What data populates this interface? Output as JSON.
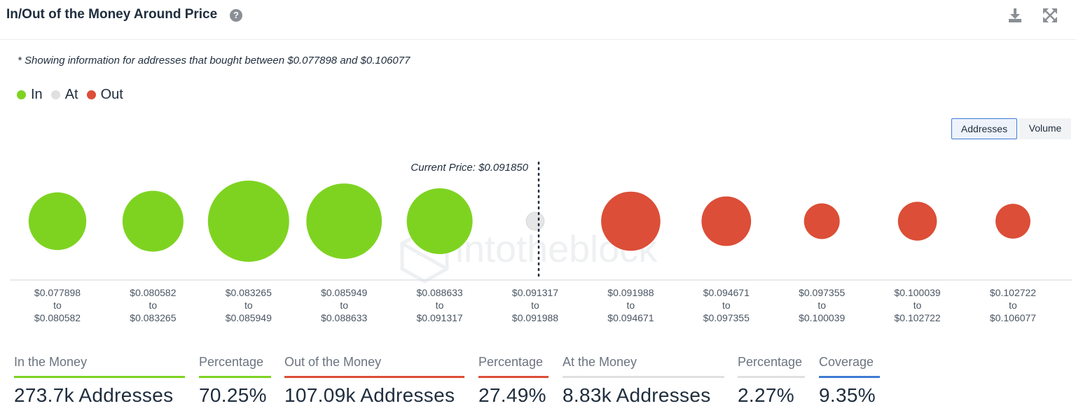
{
  "header": {
    "title": "In/Out of the Money Around Price",
    "help_icon": "question-circle-icon",
    "download_icon": "download-icon",
    "expand_icon": "expand-icon"
  },
  "note": "* Showing information for addresses that bought between $0.077898 and $0.106077",
  "legend": [
    {
      "label": "In",
      "color": "#7ed321"
    },
    {
      "label": "At",
      "color": "#e0e0e0"
    },
    {
      "label": "Out",
      "color": "#dc4e37"
    }
  ],
  "toggle": {
    "addresses": "Addresses",
    "volume": "Volume"
  },
  "watermark": "intotheblock",
  "chart_data": {
    "type": "bubble",
    "current_price_label": "Current Price: $0.091850",
    "categories": [
      {
        "from": "$0.077898",
        "to": "$0.080582",
        "status": "in",
        "relative_size": 0.71
      },
      {
        "from": "$0.080582",
        "to": "$0.083265",
        "status": "in",
        "relative_size": 0.75
      },
      {
        "from": "$0.083265",
        "to": "$0.085949",
        "status": "in",
        "relative_size": 1.0
      },
      {
        "from": "$0.085949",
        "to": "$0.088633",
        "status": "in",
        "relative_size": 0.93
      },
      {
        "from": "$0.088633",
        "to": "$0.091317",
        "status": "in",
        "relative_size": 0.81
      },
      {
        "from": "$0.091317",
        "to": "$0.091988",
        "status": "at",
        "relative_size": 0.22
      },
      {
        "from": "$0.091988",
        "to": "$0.094671",
        "status": "out",
        "relative_size": 0.73
      },
      {
        "from": "$0.094671",
        "to": "$0.097355",
        "status": "out",
        "relative_size": 0.61
      },
      {
        "from": "$0.097355",
        "to": "$0.100039",
        "status": "out",
        "relative_size": 0.44
      },
      {
        "from": "$0.100039",
        "to": "$0.102722",
        "status": "out",
        "relative_size": 0.48
      },
      {
        "from": "$0.102722",
        "to": "$0.106077",
        "status": "out",
        "relative_size": 0.43
      }
    ],
    "to_word": "to",
    "colors": {
      "in": "#7ed321",
      "at": "#e6e6e6",
      "out": "#dc4e37"
    }
  },
  "stats": [
    {
      "label": "In the Money",
      "value": "273.7k Addresses",
      "color": "#7ed321"
    },
    {
      "label": "Percentage",
      "value": "70.25%",
      "color": "#7ed321"
    },
    {
      "label": "Out of the Money",
      "value": "107.09k Addresses",
      "color": "#dc4e37"
    },
    {
      "label": "Percentage",
      "value": "27.49%",
      "color": "#dc4e37"
    },
    {
      "label": "At the Money",
      "value": "8.83k Addresses",
      "color": "#e0e0e0"
    },
    {
      "label": "Percentage",
      "value": "2.27%",
      "color": "#e0e0e0"
    },
    {
      "label": "Coverage",
      "value": "9.35%",
      "color": "#3e7bd4"
    }
  ]
}
